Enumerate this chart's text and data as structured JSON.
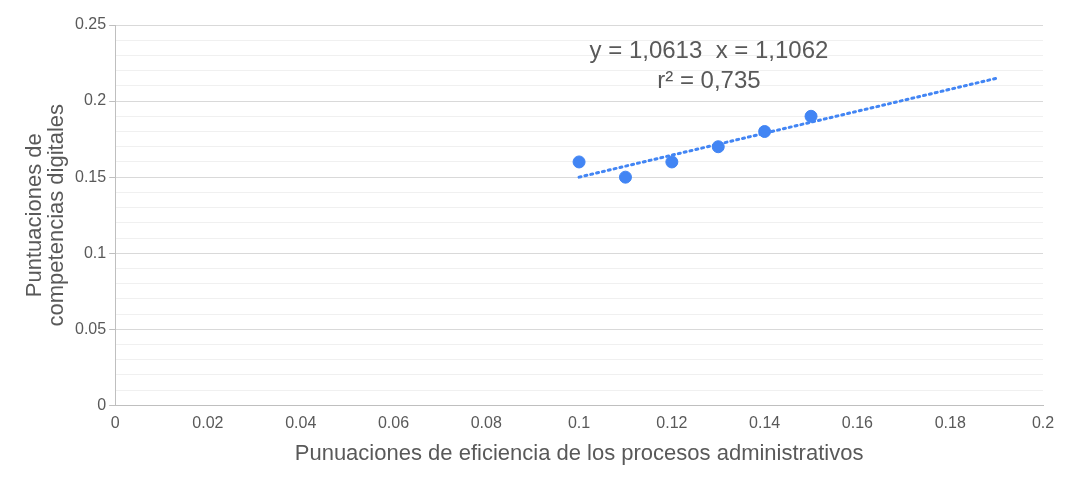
{
  "chart_data": {
    "type": "scatter",
    "xlabel": "Punuaciones de eficiencia de los procesos administrativos",
    "ylabel": "Puntuaciones de competencias digitales",
    "series": [
      {
        "color": "#4285f4",
        "x": [
          0.1,
          0.11,
          0.12,
          0.13,
          0.14,
          0.15
        ],
        "values": [
          0.16,
          0.15,
          0.16,
          0.17,
          0.18,
          0.19
        ],
        "marker": "circle"
      },
      {
        "type": "line",
        "color": "#4285f4",
        "x": [
          0.1,
          0.19
        ],
        "values": [
          0.15,
          0.215
        ],
        "line_style": "dotted",
        "marker": "none"
      }
    ],
    "annotations": [
      "y = 1,0613  x = 1,1062",
      "r² = 0,735"
    ],
    "xlim": [
      0,
      0.2
    ],
    "xticks": [
      0,
      0.02,
      0.04,
      0.06,
      0.08,
      0.1,
      0.12,
      0.14,
      0.16,
      0.18,
      0.2
    ],
    "ylim": [
      0,
      0.25
    ],
    "yticks": [
      0,
      {
        "value": 0.01,
        "label": null
      },
      {
        "value": 0.02,
        "label": null
      },
      {
        "value": 0.03,
        "label": null
      },
      {
        "value": 0.04,
        "label": null
      },
      0.05,
      {
        "value": 0.06,
        "label": null
      },
      {
        "value": 0.07,
        "label": null
      },
      {
        "value": 0.08,
        "label": null
      },
      {
        "value": 0.09,
        "label": null
      },
      0.1,
      {
        "value": 0.11,
        "label": null
      },
      {
        "value": 0.12,
        "label": null
      },
      {
        "value": 0.13,
        "label": null
      },
      {
        "value": 0.14,
        "label": null
      },
      0.15,
      {
        "value": 0.16,
        "label": null
      },
      {
        "value": 0.17,
        "label": null
      },
      {
        "value": 0.18,
        "label": null
      },
      {
        "value": 0.19,
        "label": null
      },
      0.2,
      {
        "value": 0.21,
        "label": null
      },
      {
        "value": 0.22,
        "label": null
      },
      {
        "value": 0.23,
        "label": null
      },
      {
        "value": 0.24,
        "label": null
      },
      0.25
    ],
    "grid": "y",
    "legend": false
  }
}
